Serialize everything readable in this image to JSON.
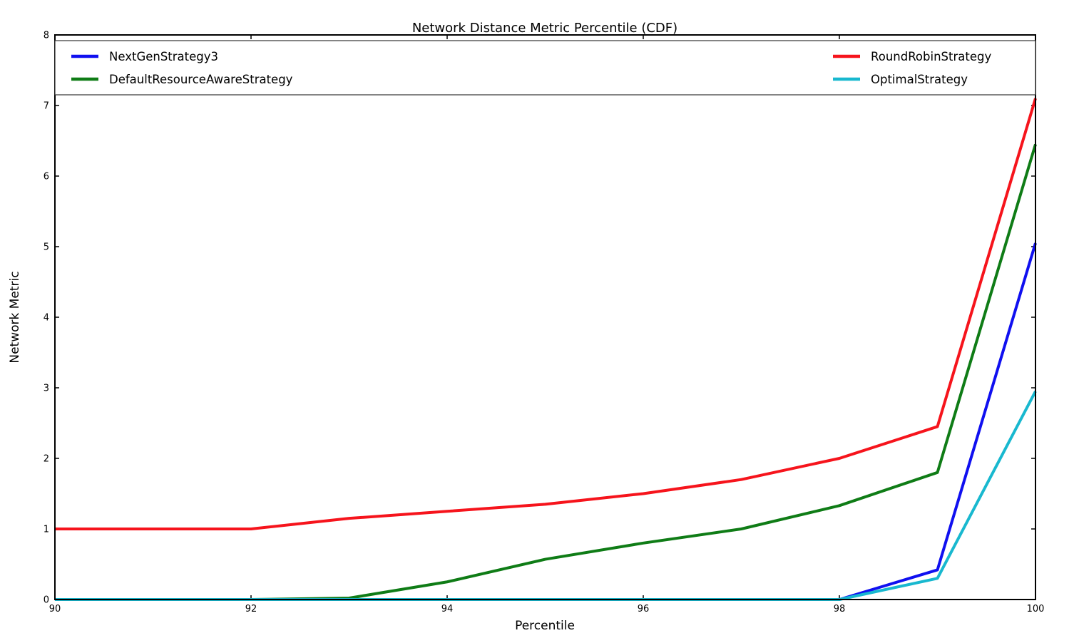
{
  "figure": {
    "title": "Network Distance Metric Percentile (CDF)",
    "xlabel": "Percentile",
    "ylabel": "Network Metric"
  },
  "chart_data": {
    "type": "line",
    "title": "Network Distance Metric Percentile (CDF)",
    "xlabel": "Percentile",
    "ylabel": "Network Metric",
    "xlim": [
      90,
      100
    ],
    "ylim": [
      0,
      8
    ],
    "xticks": [
      90,
      92,
      94,
      96,
      98,
      100
    ],
    "yticks": [
      0,
      1,
      2,
      3,
      4,
      5,
      6,
      7,
      8
    ],
    "grid": false,
    "legend_position": "top-inside, expanded across plot width, two columns",
    "x": [
      90,
      91,
      92,
      93,
      94,
      95,
      96,
      97,
      98,
      99,
      100
    ],
    "series": [
      {
        "name": "NextGenStrategy3",
        "color": "#1010f0",
        "values": [
          0,
          0,
          0,
          0,
          0,
          0,
          0,
          0,
          0,
          0.42,
          5.05
        ]
      },
      {
        "name": "DefaultResourceAwareStrategy",
        "color": "#0f7c16",
        "values": [
          0,
          0,
          0,
          0.02,
          0.25,
          0.57,
          0.8,
          1.0,
          1.33,
          1.8,
          6.45
        ]
      },
      {
        "name": "RoundRobinStrategy",
        "color": "#f6141c",
        "values": [
          1.0,
          1.0,
          1.0,
          1.15,
          1.25,
          1.35,
          1.5,
          1.7,
          2.0,
          2.45,
          7.1
        ]
      },
      {
        "name": "OptimalStrategy",
        "color": "#18b8cf",
        "values": [
          0,
          0,
          0,
          0,
          0,
          0,
          0,
          0,
          0,
          0.3,
          2.95
        ]
      }
    ],
    "legend_columns": [
      [
        "NextGenStrategy3",
        "DefaultResourceAwareStrategy"
      ],
      [
        "RoundRobinStrategy",
        "OptimalStrategy"
      ]
    ]
  }
}
